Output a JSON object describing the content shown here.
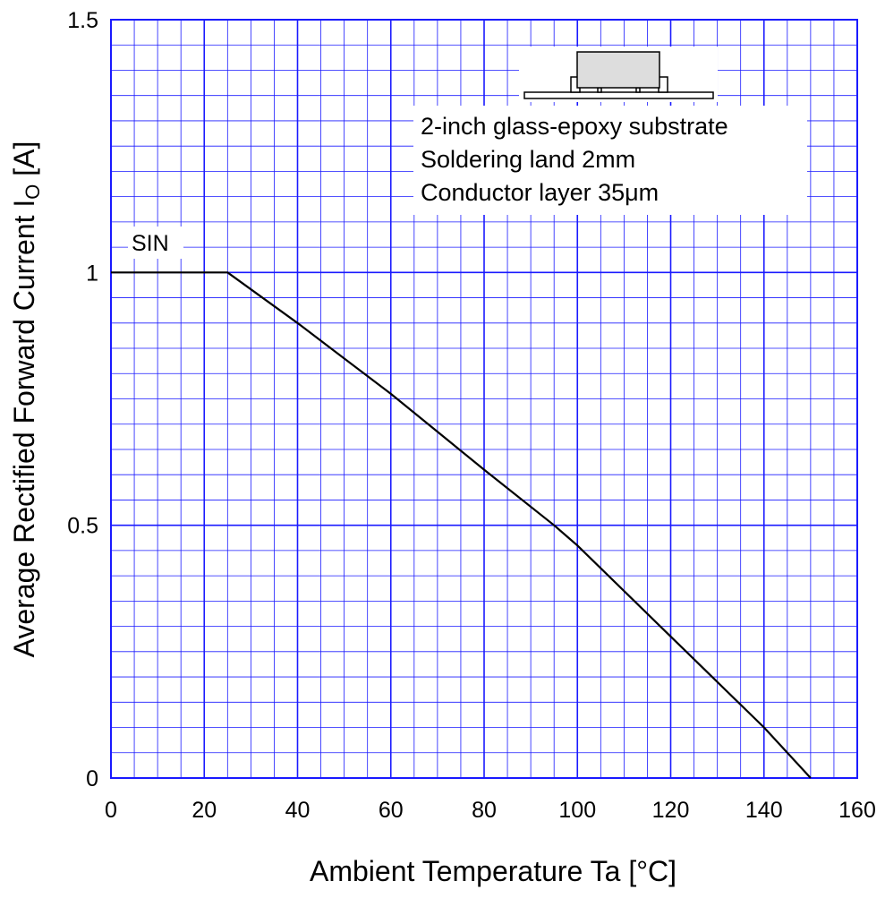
{
  "chart_data": {
    "type": "line",
    "title": "",
    "xlabel": "Ambient Temperature  Ta  [°C]",
    "ylabel": "Average Rectified Forward Current  I",
    "ylabel_subscript": "O",
    "ylabel_unit": " [A]",
    "xlim": [
      0,
      160
    ],
    "ylim": [
      0,
      1.5
    ],
    "x_ticks": [
      0,
      20,
      40,
      60,
      80,
      100,
      120,
      140,
      160
    ],
    "x_tick_labels": [
      "0",
      "20",
      "40",
      "60",
      "80",
      "100",
      "120",
      "140",
      "160"
    ],
    "y_ticks": [
      0,
      0.5,
      1,
      1.5
    ],
    "y_tick_labels": [
      "0",
      "0.5",
      "1",
      "1.5"
    ],
    "grid": true,
    "grid_color": "#1a1aff",
    "series": [
      {
        "name": "SIN",
        "color": "#000000",
        "x": [
          0,
          25,
          40,
          60,
          80,
          95,
          100,
          120,
          130,
          140,
          150
        ],
        "y": [
          1.0,
          1.0,
          0.9,
          0.76,
          0.61,
          0.5,
          0.46,
          0.28,
          0.19,
          0.1,
          0.0
        ]
      }
    ],
    "annotations": {
      "conditions": [
        "2-inch  glass-epoxy  substrate",
        "Soldering  land  2mm",
        "Conductor layer 35μm"
      ],
      "package_icon": "smd-package-on-substrate-icon"
    }
  }
}
